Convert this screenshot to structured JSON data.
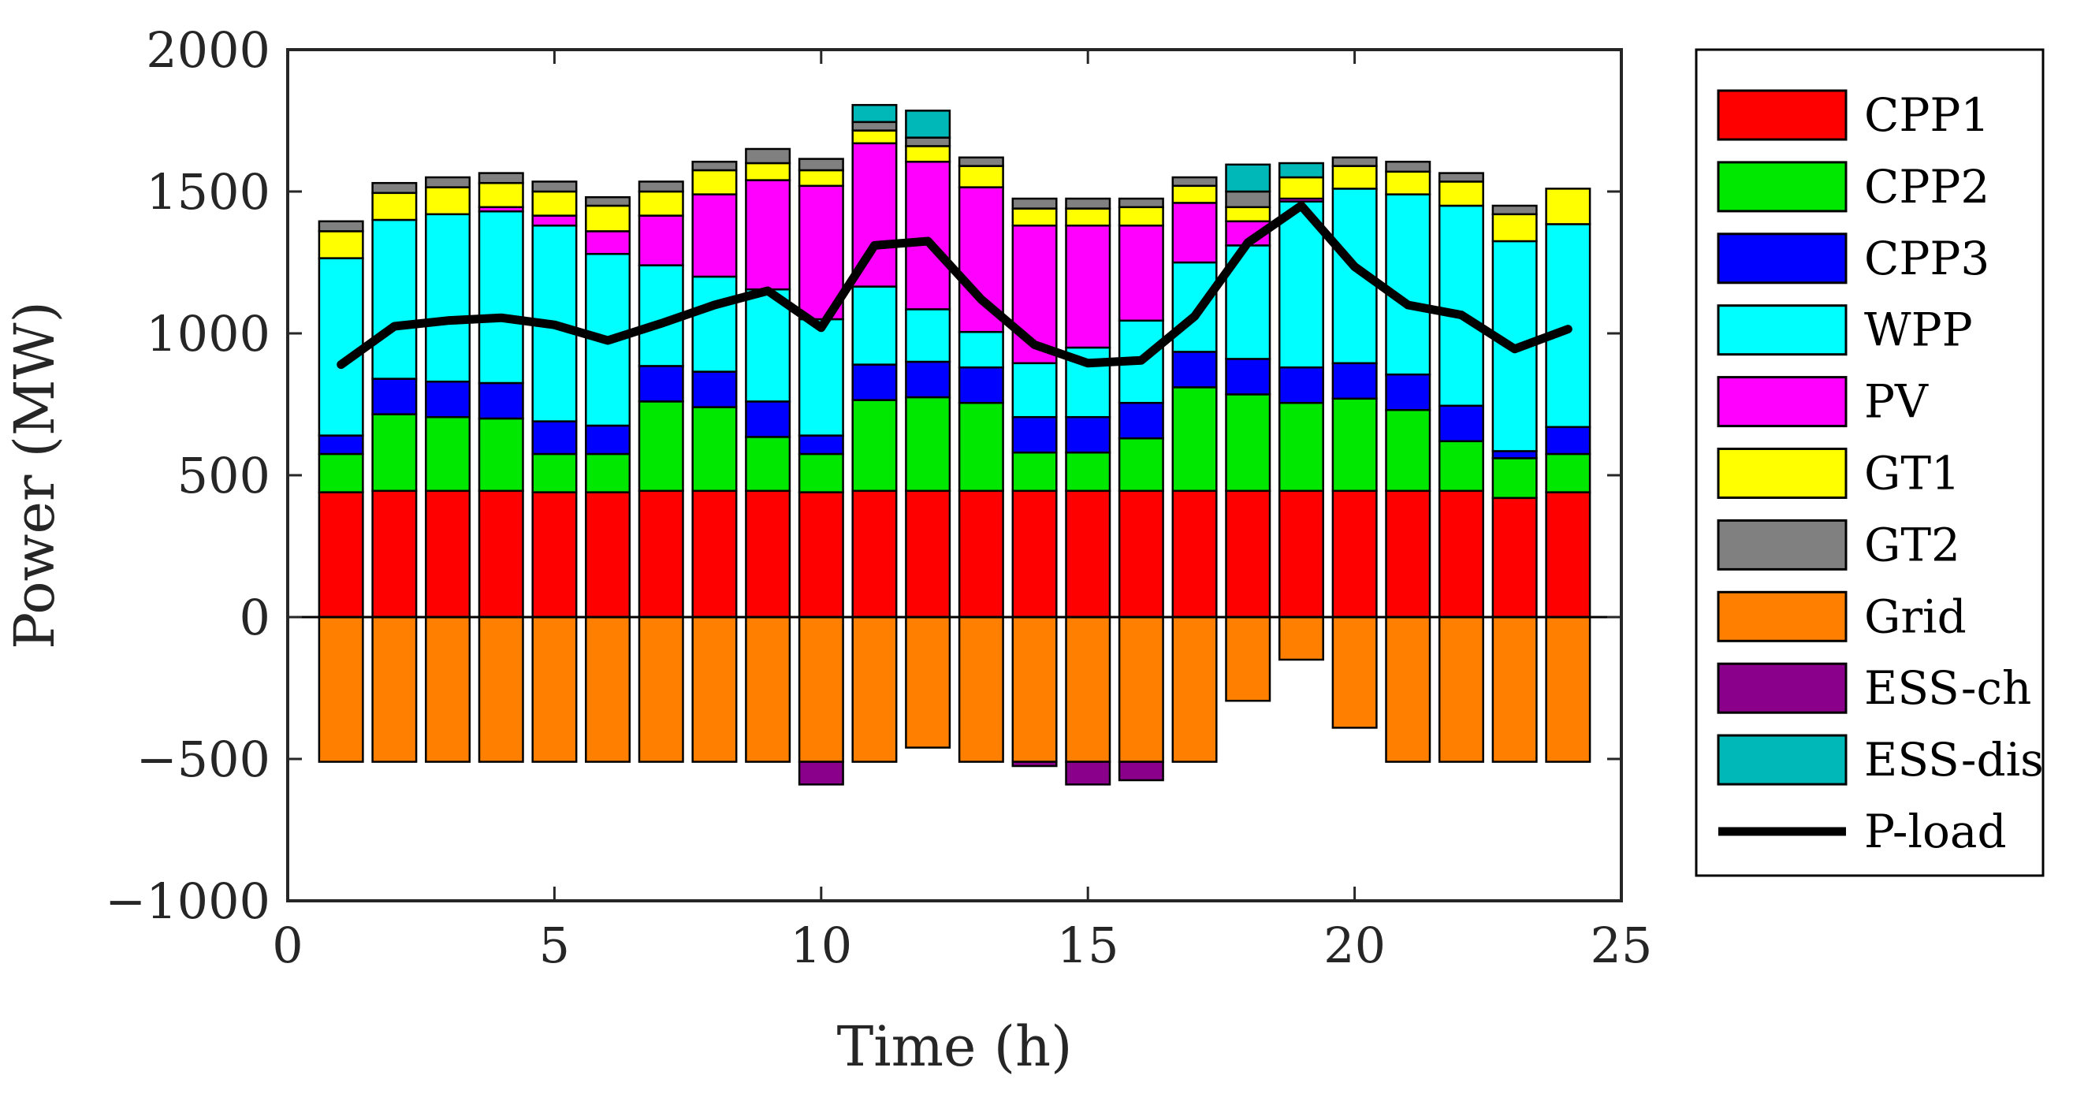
{
  "chart_data": {
    "type": "bar",
    "stacked": true,
    "xlabel": "Time (h)",
    "ylabel": "Power (MW)",
    "xlim": [
      0,
      25
    ],
    "ylim": [
      -1000,
      2000
    ],
    "xticks": [
      0,
      5,
      10,
      15,
      20,
      25
    ],
    "yticks": [
      -1000,
      -500,
      0,
      500,
      1000,
      1500,
      2000
    ],
    "ytick_labels": [
      "−1000",
      "−500",
      "0",
      "500",
      "1000",
      "1500",
      "2000"
    ],
    "x": [
      1,
      2,
      3,
      4,
      5,
      6,
      7,
      8,
      9,
      10,
      11,
      12,
      13,
      14,
      15,
      16,
      17,
      18,
      19,
      20,
      21,
      22,
      23,
      24
    ],
    "legend_position": "outside-right",
    "series": [
      {
        "name": "CPP1",
        "color": "#ff0000",
        "values": [
          440,
          445,
          445,
          445,
          440,
          440,
          445,
          445,
          445,
          440,
          445,
          445,
          445,
          445,
          445,
          445,
          445,
          445,
          445,
          445,
          445,
          445,
          420,
          440
        ]
      },
      {
        "name": "CPP2",
        "color": "#00e800",
        "values": [
          135,
          270,
          260,
          255,
          135,
          135,
          315,
          295,
          190,
          135,
          320,
          330,
          310,
          135,
          135,
          185,
          365,
          340,
          310,
          325,
          285,
          175,
          140,
          135
        ]
      },
      {
        "name": "CPP3",
        "color": "#0000ff",
        "values": [
          65,
          125,
          125,
          125,
          115,
          100,
          125,
          125,
          125,
          65,
          125,
          125,
          125,
          125,
          125,
          125,
          125,
          125,
          125,
          125,
          125,
          125,
          25,
          95
        ]
      },
      {
        "name": "WPP",
        "color": "#00ffff",
        "values": [
          625,
          560,
          590,
          605,
          690,
          605,
          355,
          335,
          395,
          410,
          275,
          185,
          125,
          190,
          245,
          290,
          315,
          400,
          585,
          615,
          635,
          705,
          740,
          715
        ]
      },
      {
        "name": "PV",
        "color": "#ff00ff",
        "values": [
          0,
          0,
          0,
          15,
          35,
          80,
          175,
          290,
          385,
          470,
          505,
          520,
          510,
          485,
          430,
          335,
          210,
          85,
          10,
          0,
          0,
          0,
          0,
          0
        ]
      },
      {
        "name": "GT1",
        "color": "#ffff00",
        "values": [
          95,
          95,
          95,
          85,
          85,
          90,
          85,
          85,
          60,
          55,
          45,
          55,
          75,
          60,
          60,
          65,
          60,
          50,
          75,
          80,
          80,
          85,
          95,
          125
        ]
      },
      {
        "name": "GT2",
        "color": "#808080",
        "values": [
          35,
          35,
          35,
          35,
          35,
          30,
          35,
          30,
          50,
          40,
          30,
          30,
          30,
          35,
          35,
          30,
          30,
          55,
          0,
          30,
          35,
          30,
          30,
          0
        ]
      },
      {
        "name": "Grid",
        "color": "#ff8000",
        "values": [
          -510,
          -510,
          -510,
          -510,
          -510,
          -510,
          -510,
          -510,
          -510,
          -510,
          -510,
          -460,
          -510,
          -510,
          -510,
          -510,
          -510,
          -295,
          -150,
          -390,
          -510,
          -510,
          -510,
          -510
        ]
      },
      {
        "name": "ESS-ch",
        "color": "#8b008b",
        "values": [
          0,
          0,
          0,
          0,
          0,
          0,
          0,
          0,
          0,
          -80,
          0,
          0,
          0,
          -15,
          -80,
          -65,
          0,
          0,
          0,
          0,
          0,
          0,
          0,
          0
        ]
      },
      {
        "name": "ESS-dis",
        "color": "#00b8b8",
        "values": [
          0,
          0,
          0,
          0,
          0,
          0,
          0,
          0,
          0,
          0,
          60,
          95,
          0,
          0,
          0,
          0,
          0,
          95,
          50,
          0,
          0,
          0,
          0,
          0
        ]
      },
      {
        "name": "P-load",
        "type": "line",
        "color": "#000000",
        "values": [
          890,
          1025,
          1045,
          1055,
          1030,
          975,
          1035,
          1100,
          1150,
          1020,
          1310,
          1325,
          1120,
          960,
          895,
          905,
          1060,
          1320,
          1450,
          1235,
          1100,
          1065,
          945,
          1015
        ]
      }
    ]
  }
}
